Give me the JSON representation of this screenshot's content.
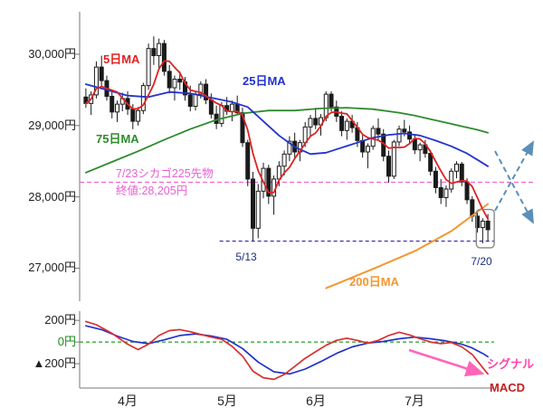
{
  "chart_data": {
    "type": "candlestick",
    "description": "Nikkei 225 daily candlestick chart with moving averages and MACD sub-panel",
    "x_months": [
      {
        "label": "4月",
        "index": 8
      },
      {
        "label": "5月",
        "index": 27
      },
      {
        "label": "6月",
        "index": 44
      },
      {
        "label": "7月",
        "index": 63
      }
    ],
    "main": {
      "ylim": [
        26550,
        30570
      ],
      "y_ticks": [
        {
          "value": 30000,
          "label": "30,000円"
        },
        {
          "value": 29000,
          "label": "29,000円"
        },
        {
          "value": 28000,
          "label": "28,000円"
        },
        {
          "value": 27000,
          "label": "27,000円"
        }
      ],
      "candles": [
        [
          29400,
          29520,
          29250,
          29310
        ],
        [
          29310,
          29480,
          29150,
          29430
        ],
        [
          29430,
          29900,
          29380,
          29820
        ],
        [
          29820,
          29980,
          29550,
          29630
        ],
        [
          29630,
          29700,
          29350,
          29410
        ],
        [
          29410,
          29480,
          29100,
          29190
        ],
        [
          29190,
          29350,
          29050,
          29300
        ],
        [
          29300,
          29460,
          29200,
          29380
        ],
        [
          29380,
          29480,
          29150,
          29230
        ],
        [
          29230,
          29300,
          28950,
          29060
        ],
        [
          29060,
          29260,
          29000,
          29210
        ],
        [
          29210,
          29600,
          29160,
          29560
        ],
        [
          29560,
          30150,
          29500,
          30080
        ],
        [
          30080,
          30250,
          29850,
          29980
        ],
        [
          29980,
          30220,
          29800,
          30150
        ],
        [
          30150,
          30200,
          29700,
          29760
        ],
        [
          29760,
          29850,
          29450,
          29530
        ],
        [
          29530,
          29700,
          29350,
          29650
        ],
        [
          29650,
          29760,
          29500,
          29610
        ],
        [
          29610,
          29680,
          29350,
          29430
        ],
        [
          29430,
          29560,
          29200,
          29270
        ],
        [
          29270,
          29480,
          29210,
          29440
        ],
        [
          29440,
          29620,
          29380,
          29580
        ],
        [
          29580,
          29650,
          29300,
          29360
        ],
        [
          29360,
          29450,
          29100,
          29160
        ],
        [
          29160,
          29280,
          28950,
          29030
        ],
        [
          29030,
          29330,
          28980,
          29280
        ],
        [
          29280,
          29400,
          29150,
          29200
        ],
        [
          29200,
          29350,
          29060,
          29300
        ],
        [
          29300,
          29420,
          29150,
          29180
        ],
        [
          29180,
          29250,
          28700,
          28760
        ],
        [
          28760,
          28800,
          28150,
          28250
        ],
        [
          28250,
          28350,
          27380,
          27560
        ],
        [
          27560,
          28180,
          27420,
          28080
        ],
        [
          28080,
          28480,
          27980,
          28400
        ],
        [
          28400,
          28450,
          27900,
          28010
        ],
        [
          28010,
          28300,
          27750,
          28250
        ],
        [
          28250,
          28500,
          28150,
          28430
        ],
        [
          28430,
          28650,
          28300,
          28600
        ],
        [
          28600,
          28850,
          28500,
          28780
        ],
        [
          28780,
          28900,
          28550,
          28630
        ],
        [
          28630,
          28800,
          28500,
          28760
        ],
        [
          28760,
          29050,
          28700,
          28980
        ],
        [
          28980,
          29150,
          28850,
          29100
        ],
        [
          29100,
          29250,
          28950,
          29010
        ],
        [
          29010,
          29160,
          28860,
          29110
        ],
        [
          29110,
          29480,
          29060,
          29440
        ],
        [
          29440,
          29480,
          29200,
          29260
        ],
        [
          29260,
          29350,
          29050,
          29130
        ],
        [
          29130,
          29200,
          28850,
          28930
        ],
        [
          28930,
          29100,
          28800,
          29060
        ],
        [
          29060,
          29150,
          28900,
          28970
        ],
        [
          28970,
          29050,
          28700,
          28790
        ],
        [
          28790,
          28880,
          28550,
          28630
        ],
        [
          28630,
          28750,
          28400,
          28710
        ],
        [
          28710,
          29000,
          28660,
          28960
        ],
        [
          28960,
          29100,
          28800,
          28880
        ],
        [
          28880,
          28950,
          28500,
          28570
        ],
        [
          28570,
          28650,
          28200,
          28290
        ],
        [
          28290,
          28800,
          28250,
          28770
        ],
        [
          28770,
          29000,
          28710,
          28950
        ],
        [
          28950,
          29080,
          28850,
          28910
        ],
        [
          28910,
          29000,
          28750,
          28810
        ],
        [
          28810,
          28880,
          28600,
          28660
        ],
        [
          28660,
          28760,
          28500,
          28730
        ],
        [
          28730,
          28800,
          28550,
          28610
        ],
        [
          28610,
          28660,
          28300,
          28360
        ],
        [
          28360,
          28420,
          28050,
          28130
        ],
        [
          28130,
          28250,
          27900,
          27990
        ],
        [
          27990,
          28160,
          27860,
          28110
        ],
        [
          28110,
          28400,
          28060,
          28360
        ],
        [
          28360,
          28500,
          28260,
          28460
        ],
        [
          28460,
          28490,
          28150,
          28210
        ],
        [
          28210,
          28260,
          27900,
          27960
        ],
        [
          27960,
          28010,
          27650,
          27730
        ],
        [
          27730,
          27810,
          27500,
          27570
        ],
        [
          27570,
          27700,
          27350,
          27660
        ],
        [
          27660,
          27760,
          27380,
          27540
        ]
      ],
      "ma": {
        "ma5": {
          "label": "5日MA",
          "color": "#dd2222",
          "window": 5
        },
        "ma25": {
          "label": "25日MA",
          "color": "#2233cc",
          "points": [
            [
              0,
              29580
            ],
            [
              4,
              29500
            ],
            [
              8,
              29420
            ],
            [
              12,
              29400
            ],
            [
              16,
              29470
            ],
            [
              20,
              29450
            ],
            [
              24,
              29390
            ],
            [
              28,
              29330
            ],
            [
              31,
              29260
            ],
            [
              34,
              29060
            ],
            [
              37,
              28860
            ],
            [
              40,
              28700
            ],
            [
              43,
              28600
            ],
            [
              46,
              28620
            ],
            [
              49,
              28690
            ],
            [
              52,
              28760
            ],
            [
              55,
              28830
            ],
            [
              58,
              28870
            ],
            [
              61,
              28890
            ],
            [
              64,
              28860
            ],
            [
              67,
              28790
            ],
            [
              70,
              28710
            ],
            [
              73,
              28610
            ],
            [
              75,
              28520
            ],
            [
              77,
              28430
            ]
          ]
        },
        "ma75": {
          "label": "75日MA",
          "color": "#2e8b2e",
          "points": [
            [
              0,
              28340
            ],
            [
              5,
              28490
            ],
            [
              10,
              28640
            ],
            [
              15,
              28800
            ],
            [
              20,
              28950
            ],
            [
              25,
              29080
            ],
            [
              30,
              29170
            ],
            [
              35,
              29210
            ],
            [
              40,
              29210
            ],
            [
              45,
              29240
            ],
            [
              50,
              29250
            ],
            [
              55,
              29230
            ],
            [
              60,
              29180
            ],
            [
              63,
              29140
            ],
            [
              66,
              29090
            ],
            [
              69,
              29040
            ],
            [
              72,
              28990
            ],
            [
              75,
              28940
            ],
            [
              77,
              28900
            ]
          ]
        },
        "ma200": {
          "label": "200日MA",
          "color": "#f5962e",
          "points": [
            [
              46,
              26720
            ],
            [
              55,
              26990
            ],
            [
              63,
              27240
            ],
            [
              70,
              27520
            ],
            [
              77,
              27900
            ]
          ]
        }
      },
      "annotations": {
        "futures_line": {
          "value": 28205,
          "color": "#ee66d4",
          "note_line1": "7/23シカゴ225先物",
          "note_line2": "終値:28,205円"
        },
        "support_line": {
          "value": 27380,
          "color": "#4a3ab8",
          "start_index": 27,
          "label_start": "5/13",
          "label_end": "7/20",
          "label_color": "#1a2f7a"
        },
        "highlight_box": {
          "from_index": 76,
          "to_index": 77,
          "color": "#888888"
        },
        "scenario_arrows": {
          "color": "#5b8fb9"
        }
      }
    },
    "macd": {
      "ylim": [
        -425,
        285
      ],
      "y_ticks": [
        {
          "value": 200,
          "label": "200円",
          "color": "#222222"
        },
        {
          "value": 0,
          "label": "0円",
          "color": "#1e8a1e"
        },
        {
          "value": -200,
          "label": "▲200円",
          "color": "#222222"
        }
      ],
      "zero_line_color": "#22a022",
      "series": {
        "macd": {
          "label": "MACD",
          "color": "#d83030",
          "label_color": "#c02020",
          "points": [
            [
              0,
              190
            ],
            [
              2,
              160
            ],
            [
              5,
              80
            ],
            [
              8,
              -20
            ],
            [
              10,
              -70
            ],
            [
              12,
              -20
            ],
            [
              14,
              60
            ],
            [
              16,
              105
            ],
            [
              18,
              115
            ],
            [
              20,
              95
            ],
            [
              22,
              70
            ],
            [
              24,
              45
            ],
            [
              26,
              25
            ],
            [
              28,
              -40
            ],
            [
              30,
              -130
            ],
            [
              32,
              -270
            ],
            [
              34,
              -330
            ],
            [
              36,
              -345
            ],
            [
              38,
              -300
            ],
            [
              40,
              -225
            ],
            [
              42,
              -150
            ],
            [
              44,
              -90
            ],
            [
              46,
              -30
            ],
            [
              48,
              15
            ],
            [
              50,
              35
            ],
            [
              52,
              15
            ],
            [
              54,
              -10
            ],
            [
              56,
              15
            ],
            [
              58,
              60
            ],
            [
              60,
              90
            ],
            [
              62,
              65
            ],
            [
              64,
              30
            ],
            [
              66,
              0
            ],
            [
              68,
              -15
            ],
            [
              70,
              -5
            ],
            [
              72,
              -45
            ],
            [
              74,
              -115
            ],
            [
              75,
              -175
            ],
            [
              76,
              -235
            ],
            [
              77,
              -295
            ]
          ]
        },
        "signal": {
          "label": "シグナル",
          "color": "#2233cc",
          "label_color": "#ff44aa",
          "points": [
            [
              0,
              150
            ],
            [
              3,
              115
            ],
            [
              6,
              55
            ],
            [
              9,
              5
            ],
            [
              12,
              -15
            ],
            [
              15,
              20
            ],
            [
              18,
              60
            ],
            [
              21,
              75
            ],
            [
              24,
              55
            ],
            [
              27,
              25
            ],
            [
              30,
              -60
            ],
            [
              33,
              -185
            ],
            [
              36,
              -275
            ],
            [
              39,
              -295
            ],
            [
              42,
              -250
            ],
            [
              45,
              -180
            ],
            [
              48,
              -105
            ],
            [
              51,
              -45
            ],
            [
              54,
              -10
            ],
            [
              57,
              5
            ],
            [
              60,
              30
            ],
            [
              63,
              45
            ],
            [
              66,
              30
            ],
            [
              69,
              10
            ],
            [
              72,
              -20
            ],
            [
              74,
              -55
            ],
            [
              76,
              -105
            ],
            [
              77,
              -135
            ]
          ]
        }
      },
      "trend_arrow": {
        "color": "#ff66b8"
      }
    }
  }
}
